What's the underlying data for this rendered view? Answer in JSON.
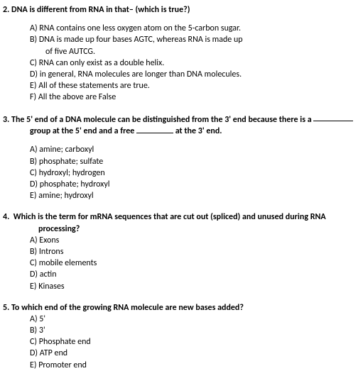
{
  "q2": {
    "number": "2.",
    "stem": "DNA is different from RNA in that– (which is true?)",
    "options": {
      "A": "A) RNA contains one less oxygen atom on the 5-carbon sugar.",
      "B": "B) DNA is made up four bases AGTC, whereas RNA is made up",
      "B2": "of five AUTCG.",
      "C": "C) RNA can only exist as a double helix.",
      "D": "D) in general, RNA molecules are longer than DNA molecules.",
      "E": "E) All of these statements are true.",
      "F": "F) All the above are False"
    }
  },
  "q3": {
    "number": "3.",
    "stem_part1": "The 5' end of a DNA molecule can be distinguished from the 3' end because there is a ",
    "stem_line2a": "group at the 5' end and a free ",
    "stem_line2b": " at the 3' end.",
    "options": {
      "A": "A) amine; carboxyl",
      "B": "B) phosphate; sulfate",
      "C": "C) hydroxyl; hydrogen",
      "D": "D) phosphate; hydroxyl",
      "E": "E)  amine; hydroxyl"
    }
  },
  "q4": {
    "number": "4.",
    "stem_line1": "Which is the term for mRNA sequences that are cut out (spliced) and unused during RNA",
    "stem_line2": "processing?",
    "options": {
      "A": "A) Exons",
      "B": "B) Introns",
      "C": "C) mobile elements",
      "D": "D) actin",
      "E": "E) Kinases"
    }
  },
  "q5": {
    "number": "5.",
    "stem": "To which end of the growing RNA molecule are new bases added?",
    "options": {
      "A": "A) 5'",
      "B": "B) 3'",
      "C": "C) Phosphate end",
      "D": "D) ATP end",
      "E": "E) Promoter end"
    }
  }
}
